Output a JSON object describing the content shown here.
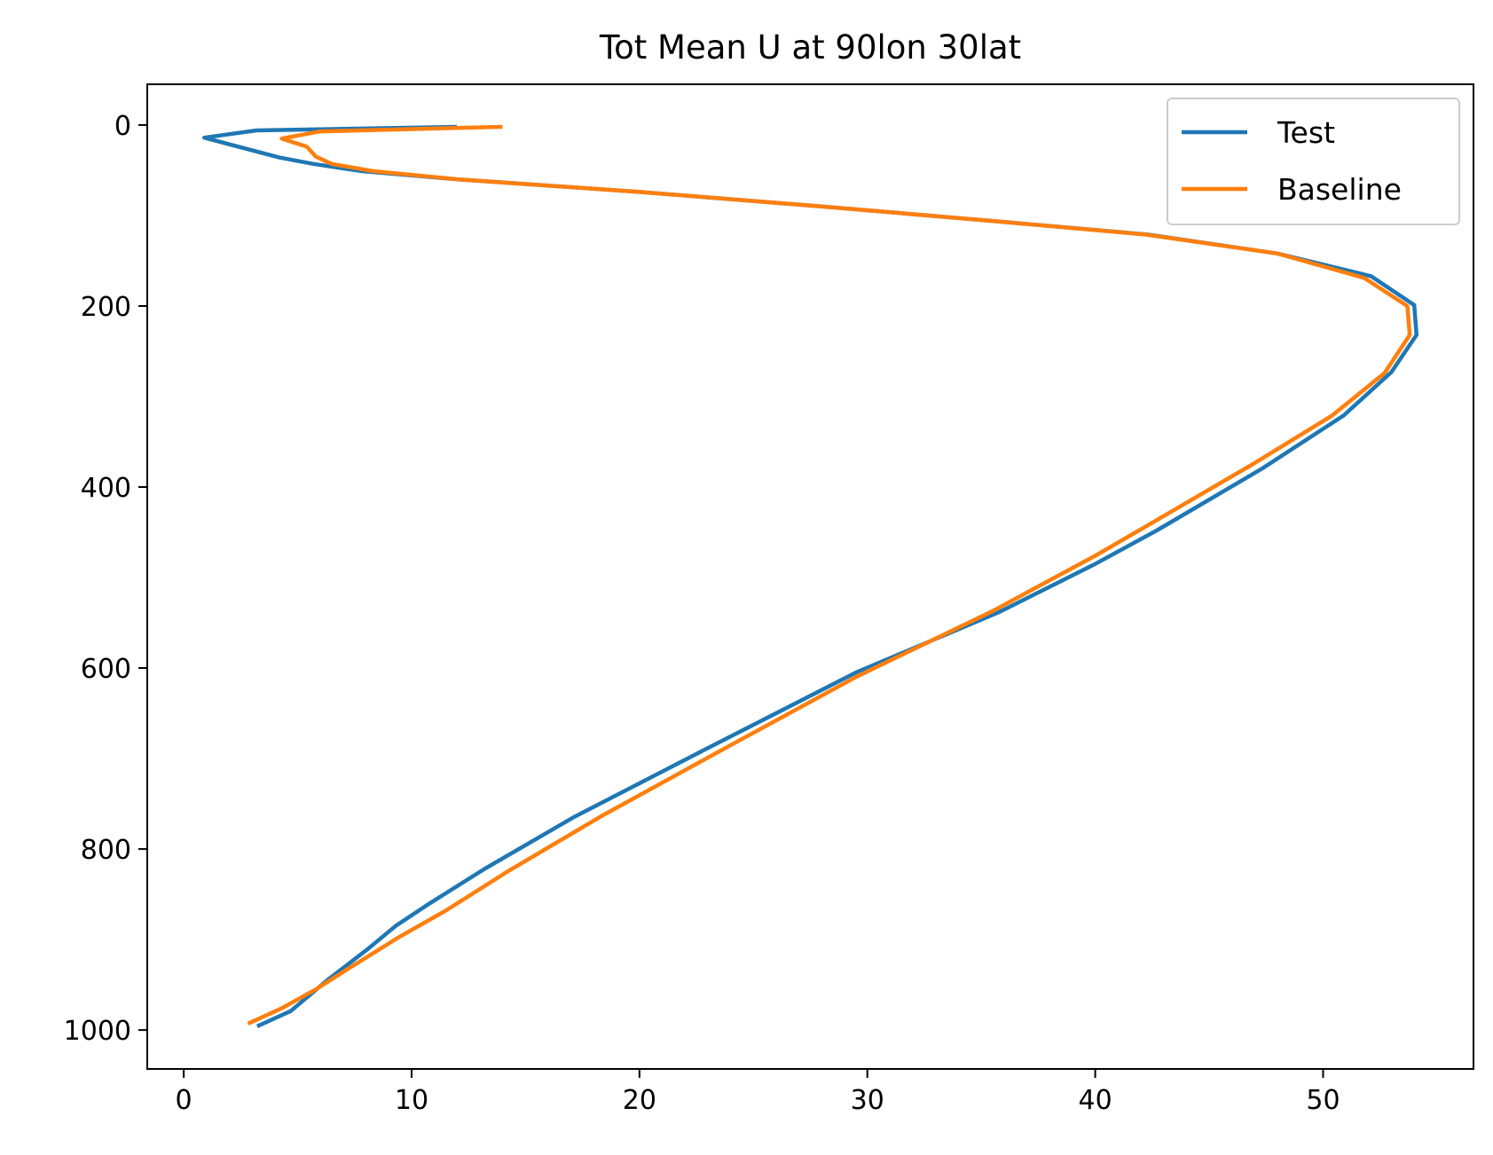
{
  "chart_data": {
    "type": "line",
    "title": "Tot Mean U at 90lon 30lat",
    "xlabel": "",
    "ylabel": "",
    "xlim": [
      -1.6,
      56.6
    ],
    "ylim": [
      1043,
      -45
    ],
    "y_inverted": true,
    "x_ticks": [
      0,
      10,
      20,
      30,
      40,
      50
    ],
    "x_tick_labels": [
      "0",
      "10",
      "20",
      "30",
      "40",
      "50"
    ],
    "y_ticks": [
      0,
      200,
      400,
      600,
      800,
      1000
    ],
    "y_tick_labels": [
      "0",
      "200",
      "400",
      "600",
      "800",
      "1000"
    ],
    "grid": false,
    "legend_position": "top-right",
    "series": [
      {
        "name": "Test",
        "color": "#1f77b4",
        "points": [
          [
            11.9,
            2
          ],
          [
            3.2,
            6
          ],
          [
            0.9,
            14
          ],
          [
            4.2,
            36
          ],
          [
            5.7,
            43
          ],
          [
            7.8,
            51
          ],
          [
            12,
            60
          ],
          [
            20,
            74
          ],
          [
            28,
            90
          ],
          [
            35.5,
            106
          ],
          [
            42.3,
            121
          ],
          [
            48,
            142
          ],
          [
            52.1,
            167
          ],
          [
            54,
            199
          ],
          [
            54.1,
            232
          ],
          [
            53,
            273
          ],
          [
            50.9,
            321
          ],
          [
            47.3,
            380
          ],
          [
            42.7,
            448
          ],
          [
            40,
            485
          ],
          [
            35.8,
            538
          ],
          [
            29.5,
            605
          ],
          [
            22.8,
            691
          ],
          [
            17.1,
            765
          ],
          [
            13.2,
            822
          ],
          [
            10.8,
            860
          ],
          [
            9.3,
            885
          ],
          [
            8.1,
            910
          ],
          [
            6.3,
            945
          ],
          [
            4.7,
            979
          ],
          [
            3.3,
            995
          ]
        ]
      },
      {
        "name": "Baseline",
        "color": "#ff7f0e",
        "points": [
          [
            13.9,
            2
          ],
          [
            6,
            7
          ],
          [
            4.3,
            15
          ],
          [
            5.4,
            24
          ],
          [
            5.8,
            35
          ],
          [
            6.5,
            43
          ],
          [
            8.3,
            51
          ],
          [
            12,
            60
          ],
          [
            20,
            74
          ],
          [
            28,
            90
          ],
          [
            35.5,
            106
          ],
          [
            42.2,
            121
          ],
          [
            48,
            142
          ],
          [
            51.8,
            169
          ],
          [
            53.7,
            200
          ],
          [
            53.8,
            232
          ],
          [
            52.7,
            274
          ],
          [
            50.4,
            321
          ],
          [
            46.9,
            375
          ],
          [
            42.4,
            441
          ],
          [
            40,
            476
          ],
          [
            35.5,
            537
          ],
          [
            29.5,
            610
          ],
          [
            23.8,
            688
          ],
          [
            18.3,
            764
          ],
          [
            14.2,
            825
          ],
          [
            11.5,
            868
          ],
          [
            9.4,
            898
          ],
          [
            7.3,
            931
          ],
          [
            5.8,
            955
          ],
          [
            4.3,
            976
          ],
          [
            2.9,
            992
          ]
        ]
      }
    ]
  }
}
